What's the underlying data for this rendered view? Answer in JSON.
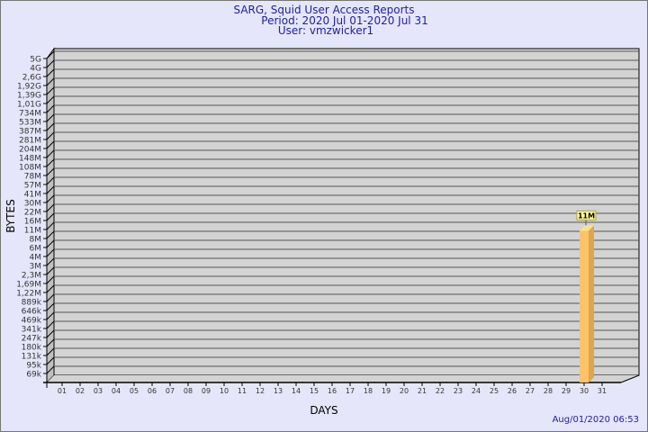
{
  "chart_data": {
    "type": "bar",
    "title": "SARG, Squid User Access Reports",
    "subtitle": [
      "Period: 2020 Jul 01-2020 Jul 31",
      "User: vmzwicker1"
    ],
    "xlabel": "DAYS",
    "ylabel": "BYTES",
    "yscale": "log",
    "yticks": [
      "5G",
      "4G",
      "2,6G",
      "1,92G",
      "1,39G",
      "1,01G",
      "734M",
      "533M",
      "387M",
      "281M",
      "204M",
      "148M",
      "108M",
      "78M",
      "57M",
      "41M",
      "30M",
      "22M",
      "16M",
      "11M",
      "8M",
      "6M",
      "4M",
      "3M",
      "2,3M",
      "1,69M",
      "1,22M",
      "889k",
      "646k",
      "469k",
      "341k",
      "247k",
      "180k",
      "131k",
      "95k",
      "69k"
    ],
    "categories": [
      "01",
      "02",
      "03",
      "04",
      "05",
      "06",
      "07",
      "08",
      "09",
      "10",
      "11",
      "12",
      "13",
      "14",
      "15",
      "16",
      "17",
      "18",
      "19",
      "20",
      "21",
      "22",
      "23",
      "24",
      "25",
      "26",
      "27",
      "28",
      "29",
      "30",
      "31"
    ],
    "bars": [
      {
        "day": "30",
        "value": 11000000,
        "label": "11M"
      }
    ],
    "colors": {
      "background": "#e6e6fa",
      "plot": "#d3d3d3",
      "wall": "#c0c0c0",
      "bar": "#fcc368",
      "bar_side": "#dca550",
      "bar_top": "#fde08f",
      "title": "#2020a0",
      "label_box": "#ffff99"
    },
    "grid": true
  },
  "timestamp": "Aug/01/2020 06:53"
}
